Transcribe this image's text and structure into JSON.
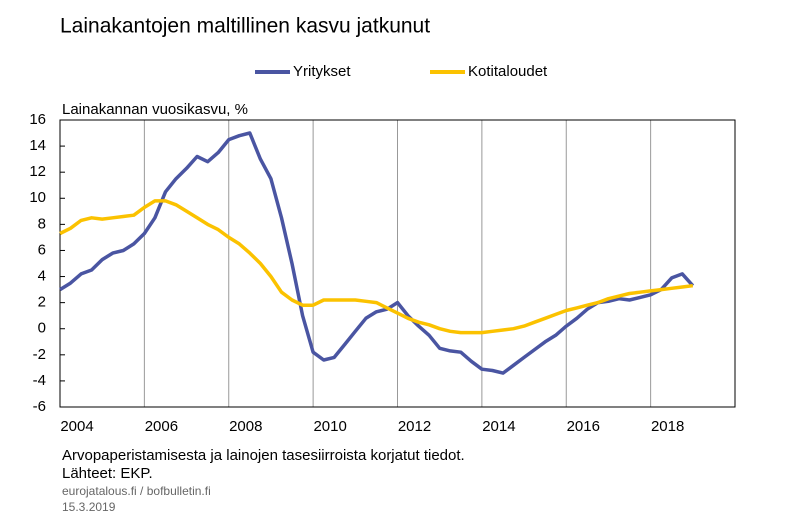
{
  "chart_data": {
    "type": "line",
    "title": "Lainakantojen maltillinen kasvu jatkunut",
    "y_label": "Lainakannan vuosikasvu, %",
    "notes": [
      "Arvopaperistamisesta  ja lainojen tasesiirroista korjatut tiedot.",
      "Lähteet: EKP."
    ],
    "source": [
      "eurojatalous.fi / bofbulletin.fi",
      "15.3.2019"
    ],
    "x": [
      2004,
      2004.25,
      2004.5,
      2004.75,
      2005,
      2005.25,
      2005.5,
      2005.75,
      2006,
      2006.25,
      2006.5,
      2006.75,
      2007,
      2007.25,
      2007.5,
      2007.75,
      2008,
      2008.25,
      2008.5,
      2008.75,
      2009,
      2009.25,
      2009.5,
      2009.75,
      2010,
      2010.25,
      2010.5,
      2010.75,
      2011,
      2011.25,
      2011.5,
      2011.75,
      2012,
      2012.25,
      2012.5,
      2012.75,
      2013,
      2013.25,
      2013.5,
      2013.75,
      2014,
      2014.25,
      2014.5,
      2014.75,
      2015,
      2015.25,
      2015.5,
      2015.75,
      2016,
      2016.25,
      2016.5,
      2016.75,
      2017,
      2017.25,
      2017.5,
      2017.75,
      2018,
      2018.25,
      2018.5,
      2018.75,
      2019
    ],
    "series": [
      {
        "name": "Yritykset",
        "color": "#4a55a2",
        "values": [
          3.0,
          3.5,
          4.2,
          4.5,
          5.3,
          5.8,
          6.0,
          6.5,
          7.3,
          8.5,
          10.5,
          11.5,
          12.3,
          13.2,
          12.8,
          13.5,
          14.5,
          14.8,
          15.0,
          13.0,
          11.5,
          8.5,
          5.0,
          1.0,
          -1.8,
          -2.4,
          -2.2,
          -1.2,
          -0.2,
          0.8,
          1.3,
          1.5,
          2.0,
          1.0,
          0.2,
          -0.5,
          -1.5,
          -1.7,
          -1.8,
          -2.5,
          -3.1,
          -3.2,
          -3.4,
          -2.8,
          -2.2,
          -1.6,
          -1.0,
          -0.5,
          0.2,
          0.8,
          1.5,
          2.0,
          2.1,
          2.3,
          2.2,
          2.4,
          2.6,
          3.0,
          3.9,
          4.2,
          3.3
        ]
      },
      {
        "name": "Kotitaloudet",
        "color": "#fbc200",
        "values": [
          7.3,
          7.7,
          8.3,
          8.5,
          8.4,
          8.5,
          8.6,
          8.7,
          9.3,
          9.8,
          9.8,
          9.5,
          9.0,
          8.5,
          8.0,
          7.6,
          7.0,
          6.5,
          5.8,
          5.0,
          4.0,
          2.8,
          2.2,
          1.8,
          1.8,
          2.2,
          2.2,
          2.2,
          2.2,
          2.1,
          2.0,
          1.6,
          1.2,
          0.8,
          0.5,
          0.3,
          0.0,
          -0.2,
          -0.3,
          -0.3,
          -0.3,
          -0.2,
          -0.1,
          0.0,
          0.2,
          0.5,
          0.8,
          1.1,
          1.4,
          1.6,
          1.8,
          2.0,
          2.3,
          2.5,
          2.7,
          2.8,
          2.9,
          3.0,
          3.1,
          3.2,
          3.3
        ]
      }
    ],
    "xlim": [
      2004,
      2020
    ],
    "xticks": [
      2004,
      2006,
      2008,
      2010,
      2012,
      2014,
      2016,
      2018
    ],
    "ylim": [
      -6,
      16
    ],
    "yticks": [
      -6,
      -4,
      -2,
      0,
      2,
      4,
      6,
      8,
      10,
      12,
      14,
      16
    ],
    "grid": "x"
  }
}
